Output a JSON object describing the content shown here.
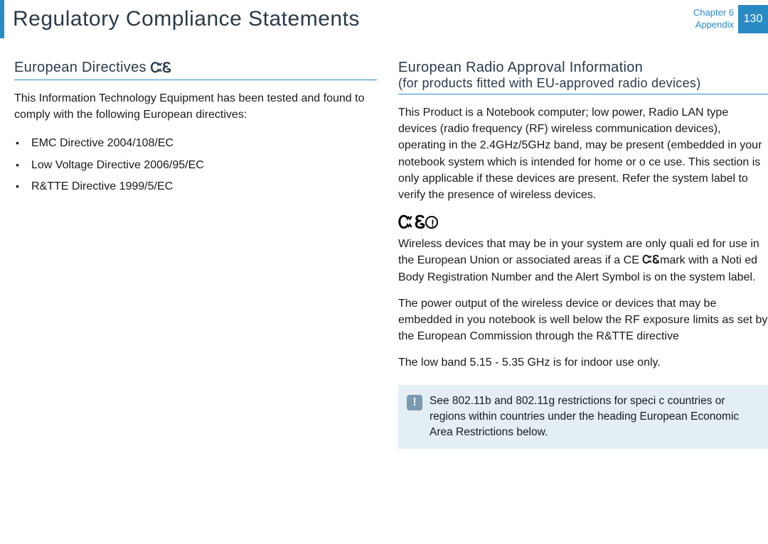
{
  "header": {
    "title": "Regulatory Compliance Statements",
    "chapter_line1": "Chapter 6",
    "chapter_line2": "Appendix",
    "page_number": "130"
  },
  "colors": {
    "accent": "#2a8ac4",
    "text": "#1a1a1a",
    "heading": "#2a3a4a",
    "info_bg": "#e4eef5",
    "info_icon_bg": "#7a99b0"
  },
  "left": {
    "heading": "European Directives",
    "intro": "This Information Technology Equipment has been tested and found to comply with the following European directives:",
    "directives": [
      "EMC Directive 2004/108/EC",
      "Low Voltage Directive 2006/95/EC",
      "R&TTE Directive 1999/5/EC"
    ]
  },
  "right": {
    "heading_line1": "European Radio Approval Information",
    "heading_line2": "(for products ﬁtted with EU-approved radio devices)",
    "p1": "This Product is a Notebook computer; low power, Radio LAN type devices (radio frequency (RF) wireless communication devices), operating in the 2.4GHz/5GHz band, may be present (embedded in your notebook system which is intended for home or o ce use. This section is only applicable if these devices are present. Refer the system label to verify the presence of wireless devices.",
    "p2a": "Wireless devices that may be in your system are only quali ed for use in the European Union or associated areas if a CE ",
    "p2_ce": "Ꮸ Ꮛ",
    "p2b": "mark with a Noti ed Body Registration Number and the Alert Symbol is on the system label.",
    "p3": "The power output of the wireless device or devices that may be embedded in you notebook is well below the RF exposure limits as set by the European Commission through the R&TTE directive",
    "p4": "The low band 5.15 - 5.35 GHz is for indoor use only.",
    "info_box": "See 802.11b and 802.11g restrictions for speci c countries or regions within countries under the heading  European Economic Area Restrictions  below."
  }
}
